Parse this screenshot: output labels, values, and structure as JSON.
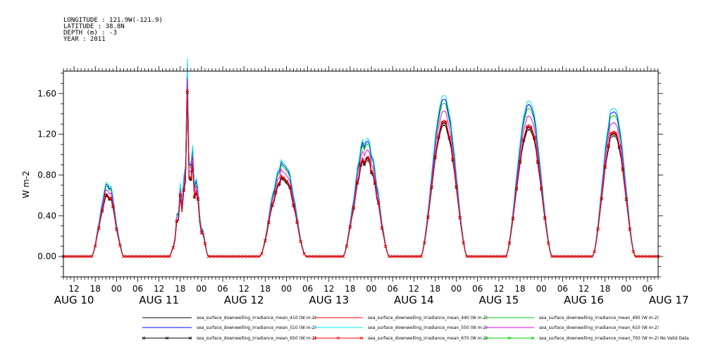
{
  "meta": [
    "LONGITUDE : 121.9W(-121.9)",
    "LATITUDE : 38.8N",
    "DEPTH (m) : -3",
    "YEAR : 2011"
  ],
  "chart_data": {
    "type": "line",
    "ylabel": "W m-2",
    "ylim": [
      -0.2,
      1.82
    ],
    "yticks": [
      "0.00",
      "0.40",
      "0.80",
      "1.20",
      "1.60"
    ],
    "ytick_values": [
      0.0,
      0.4,
      0.8,
      1.2,
      1.6
    ],
    "x_start": "2011-08-10T09:00",
    "x_end": "2011-08-17T09:00",
    "hour_ticks": [
      "12",
      "18",
      "00",
      "06",
      "12",
      "18",
      "00",
      "06",
      "12",
      "18",
      "00",
      "06",
      "12",
      "18",
      "00",
      "06",
      "12",
      "18",
      "00",
      "06",
      "12",
      "18",
      "00",
      "06",
      "12",
      "18",
      "00",
      "06"
    ],
    "day_labels": [
      "AUG 10",
      "AUG 11",
      "AUG 12",
      "AUG 13",
      "AUG 14",
      "AUG 15",
      "AUG 16",
      "AUG 17"
    ],
    "days": [
      {
        "date": "2011-08-10",
        "peak_hour": 21.5,
        "half_width": 4.5,
        "peak": 0.62,
        "noise": 0.18
      },
      {
        "date": "2011-08-11",
        "peak_hour": 20.5,
        "half_width": 5.5,
        "peak": 0.95,
        "noise": 0.45,
        "spike": 1.58
      },
      {
        "date": "2011-08-12",
        "peak_hour": 23.0,
        "half_width": 6.5,
        "peak": 0.82,
        "noise": 0.15
      },
      {
        "date": "2011-08-13",
        "peak_hour": 22.5,
        "half_width": 6.5,
        "peak": 1.0,
        "noise": 0.12
      },
      {
        "date": "2011-08-14",
        "peak_hour": 20.5,
        "half_width": 6.5,
        "peak": 1.3,
        "noise": 0.03
      },
      {
        "date": "2011-08-15",
        "peak_hour": 20.5,
        "half_width": 6.5,
        "peak": 1.27,
        "noise": 0.03
      },
      {
        "date": "2011-08-16",
        "peak_hour": 20.5,
        "half_width": 6.0,
        "peak": 1.25,
        "noise": 0.06
      }
    ],
    "series": [
      {
        "name": "sea_surface_downwelling_irradiance_mean_410 (W m-2)",
        "color": "#000000",
        "scale": 1.0,
        "marker": "none"
      },
      {
        "name": "sea_surface_downwelling_irradiance_mean_440 (W m-2)",
        "color": "#ff0000",
        "scale": 1.04,
        "marker": "none"
      },
      {
        "name": "sea_surface_downwelling_irradiance_mean_490 (W m-2)",
        "color": "#00c800",
        "scale": 1.17,
        "marker": "none"
      },
      {
        "name": "sea_surface_downwelling_irradiance_mean_510 (W m-2)",
        "color": "#0000ff",
        "scale": 1.2,
        "marker": "none"
      },
      {
        "name": "sea_surface_downwelling_irradiance_mean_550 (W m-2)",
        "color": "#00e5ee",
        "scale": 1.23,
        "marker": "none"
      },
      {
        "name": "sea_surface_downwelling_irradiance_mean_610 (W m-2)",
        "color": "#ee00ee",
        "scale": 1.11,
        "marker": "none"
      },
      {
        "name": "sea_surface_downwelling_irradiance_mean_650 (W m-2)",
        "color": "#000000",
        "scale": 1.02,
        "marker": "x"
      },
      {
        "name": "sea_surface_downwelling_irradiance_mean_670 (W m-2)",
        "color": "#ff0000",
        "scale": 1.03,
        "marker": "x"
      },
      {
        "name": "sea_surface_downwelling_irradiance_mean_700 (W m-2) No Valid Data",
        "color": "#00c800",
        "scale": 0,
        "marker": "x"
      }
    ]
  }
}
